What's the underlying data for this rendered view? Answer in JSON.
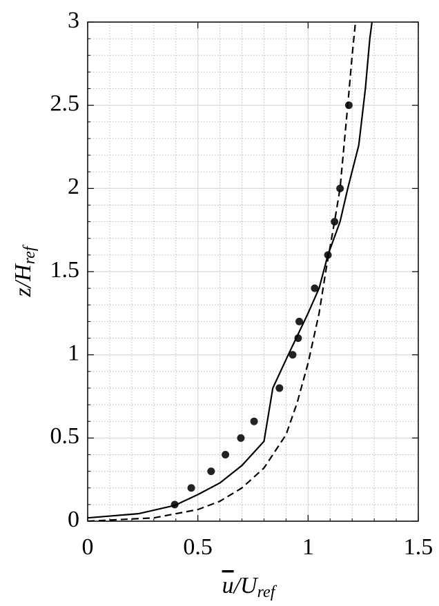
{
  "chart_data": {
    "type": "line",
    "xlabel": [
      "u",
      "/U",
      "ref"
    ],
    "ylabel": [
      "z/H",
      "ref"
    ],
    "xlim": [
      0,
      1.5
    ],
    "xticks": [
      0,
      0.5,
      1,
      1.5
    ],
    "ylim": [
      0,
      3
    ],
    "yticks": [
      0,
      0.5,
      1,
      1.5,
      2,
      2.5,
      3
    ],
    "xminorticks": [
      0.1,
      0.2,
      0.3,
      0.4,
      0.6,
      0.7,
      0.8,
      0.9,
      1.1,
      1.2,
      1.3,
      1.4
    ],
    "yminorticks": [
      0.1,
      0.2,
      0.3,
      0.4,
      0.6,
      0.7,
      0.8,
      0.9,
      1.1,
      1.2,
      1.3,
      1.4,
      1.6,
      1.7,
      1.8,
      1.9,
      2.1,
      2.2,
      2.3,
      2.4,
      2.6,
      2.7,
      2.8,
      2.9
    ],
    "grid": true,
    "minor_grid": true,
    "series": [
      {
        "style": "scatter",
        "color": "#222222",
        "x": [
          0.395,
          0.47,
          0.56,
          0.625,
          0.695,
          0.755,
          0.87,
          0.93,
          0.955,
          0.96,
          1.03,
          1.09,
          1.12,
          1.145,
          1.185
        ],
        "values": [
          0.1,
          0.2,
          0.3,
          0.4,
          0.5,
          0.6,
          0.8,
          1.0,
          1.1,
          1.2,
          1.4,
          1.6,
          1.8,
          2.0,
          2.5
        ]
      },
      {
        "style": "solid",
        "color": "#000000",
        "x": [
          0,
          0.23,
          0.395,
          0.5,
          0.6,
          0.7,
          0.8,
          0.84,
          0.91,
          1.0,
          1.05,
          1.09,
          1.145,
          1.18,
          1.23,
          1.26,
          1.28,
          1.29
        ],
        "values": [
          0.02,
          0.045,
          0.095,
          0.16,
          0.23,
          0.335,
          0.48,
          0.8,
          1.0,
          1.25,
          1.4,
          1.6,
          1.8,
          2.0,
          2.26,
          2.6,
          2.9,
          3.0
        ]
      },
      {
        "style": "dashed",
        "color": "#000000",
        "x": [
          0,
          0.3,
          0.5,
          0.6,
          0.7,
          0.8,
          0.9,
          0.95,
          1.0,
          1.05,
          1.08,
          1.12,
          1.145,
          1.18,
          1.2,
          1.215
        ],
        "values": [
          0,
          0.02,
          0.07,
          0.12,
          0.2,
          0.32,
          0.52,
          0.71,
          0.95,
          1.25,
          1.5,
          1.8,
          2.0,
          2.5,
          2.8,
          3.0
        ]
      }
    ]
  }
}
